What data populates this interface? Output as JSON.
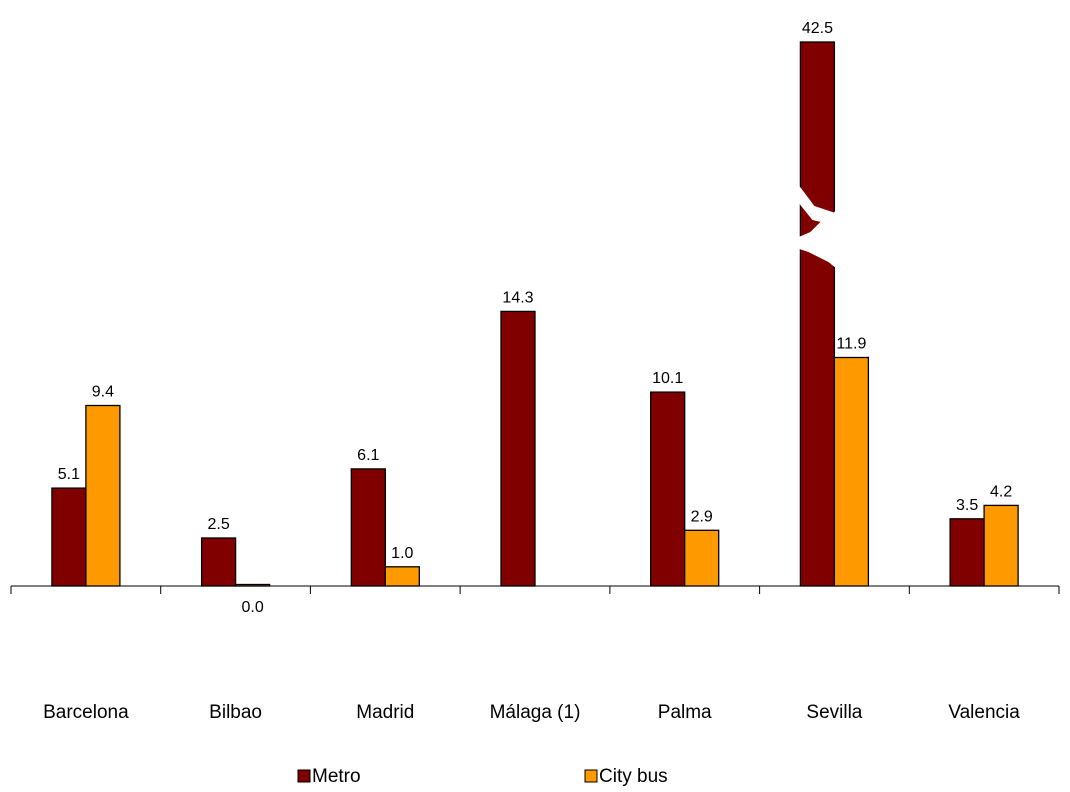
{
  "chart_data": {
    "type": "bar",
    "title": "",
    "xlabel": "",
    "ylabel": "",
    "categories": [
      "Barcelona",
      "Bilbao",
      "Madrid",
      "Málaga (1)",
      "Palma",
      "Sevilla",
      "Valencia"
    ],
    "series": [
      {
        "name": "Metro",
        "color": "#800000",
        "values": [
          5.1,
          2.5,
          6.1,
          14.3,
          10.1,
          42.5,
          3.5
        ],
        "labels": [
          "5.1",
          "2.5",
          "6.1",
          "14.3",
          "10.1",
          "42.5",
          "3.5"
        ]
      },
      {
        "name": "City bus",
        "color": "#FF9900",
        "values": [
          9.4,
          0.0,
          1.0,
          null,
          2.9,
          11.9,
          4.2
        ],
        "labels": [
          "9.4",
          "0.0",
          "1.0",
          "",
          "2.9",
          "11.9",
          "4.2"
        ]
      }
    ],
    "axis_break": {
      "category": "Sevilla",
      "series": "Metro"
    },
    "ylim": [
      0,
      14.5
    ],
    "grid": false,
    "legend": "bottom"
  }
}
